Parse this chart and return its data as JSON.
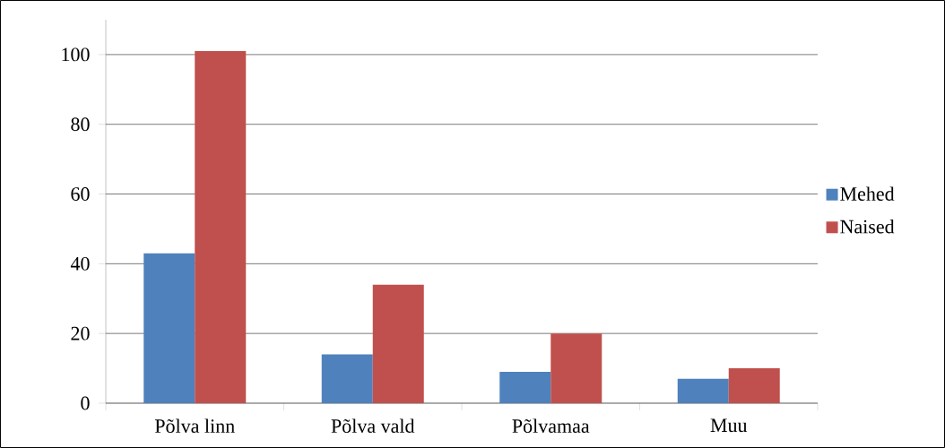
{
  "chart_data": {
    "type": "bar",
    "categories": [
      "Põlva linn",
      "Põlva vald",
      "Põlvamaa",
      "Muu"
    ],
    "series": [
      {
        "name": "Mehed",
        "color": "#4f81bd",
        "values": [
          43,
          14,
          9,
          7
        ]
      },
      {
        "name": "Naised",
        "color": "#c0504d",
        "values": [
          101,
          34,
          20,
          10
        ]
      }
    ],
    "ylim": [
      0,
      110
    ],
    "yticks": [
      0,
      20,
      40,
      60,
      80,
      100
    ],
    "grid": "y",
    "legend": "right"
  }
}
